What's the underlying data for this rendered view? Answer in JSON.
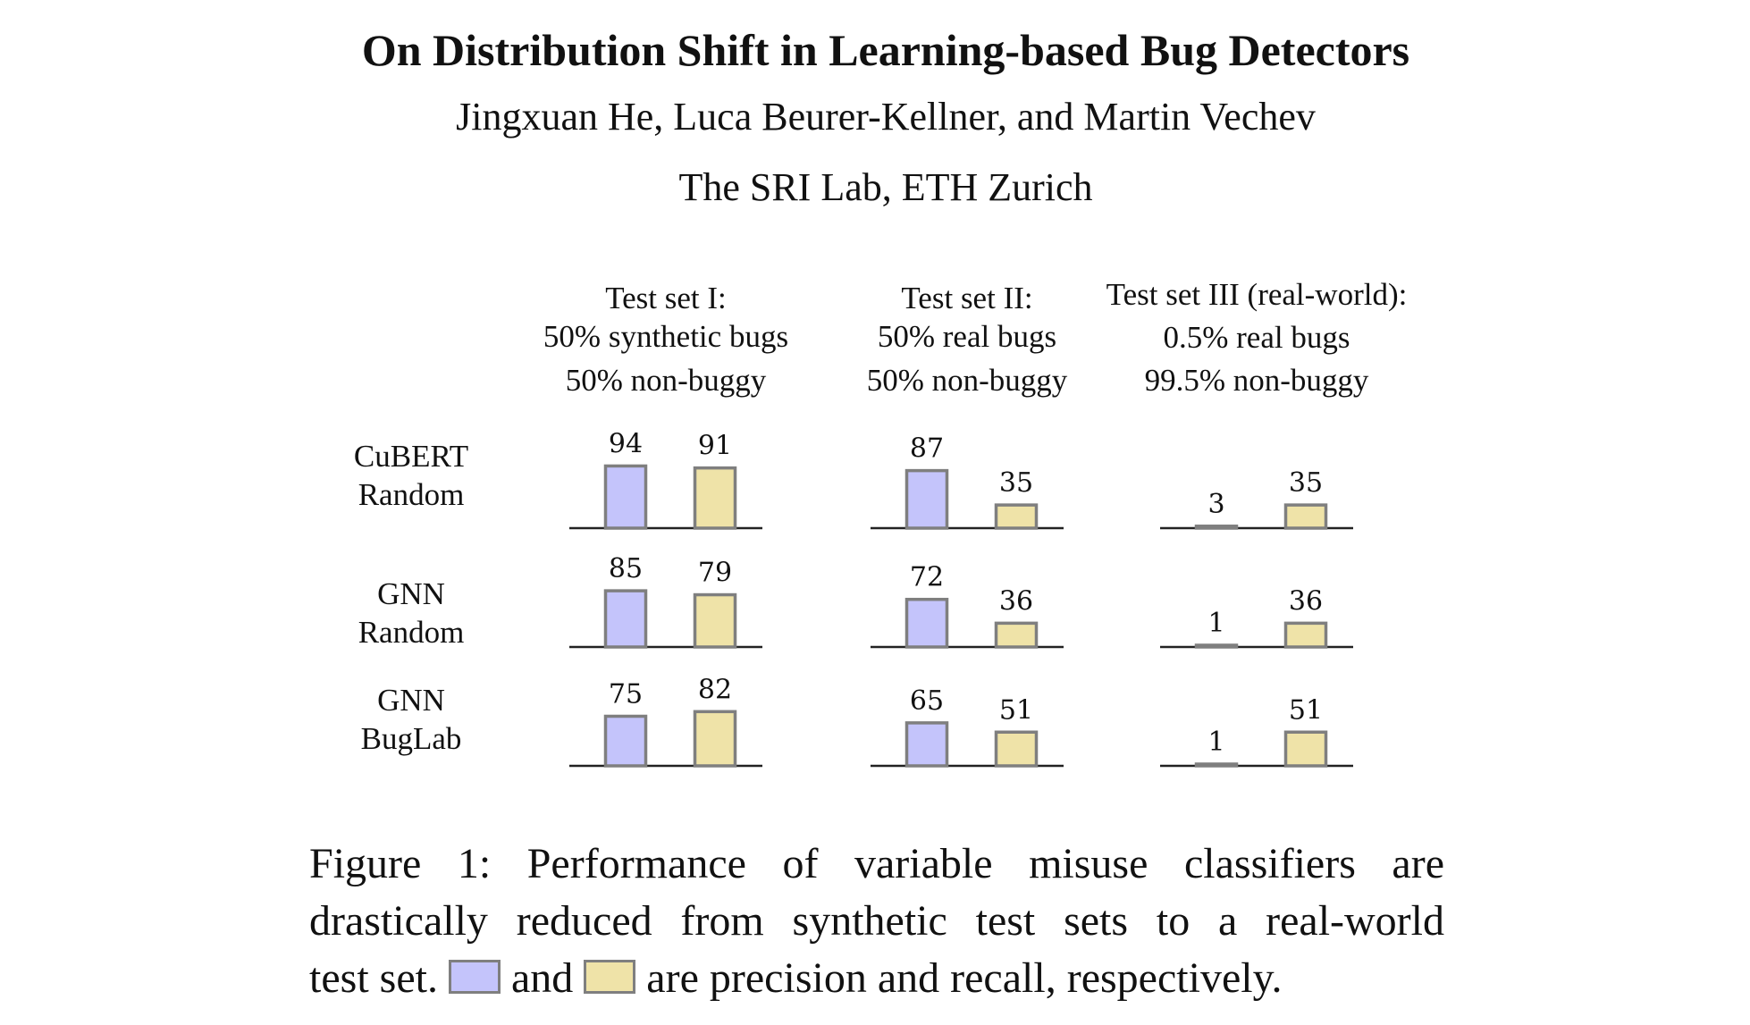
{
  "paper": {
    "title": "On Distribution Shift in Learning-based Bug Detectors",
    "authors": "Jingxuan He, Luca Beurer-Kellner, and Martin Vechev",
    "affiliation": "The SRI Lab, ETH Zurich"
  },
  "caption": {
    "line1": "Figure 1:  Performance of variable misuse classifiers are",
    "line2": "drastically reduced from synthetic test sets to a real-world",
    "line3_start": "test set.",
    "line3_and": "and",
    "line3_end": "are precision and recall, respectively."
  },
  "chart_data": {
    "type": "bar",
    "title": "",
    "colors": {
      "precision": "#c4c4fb",
      "recall": "#efe3a8",
      "border": "#7f7f7f",
      "baseline": "#222222"
    },
    "series": [
      {
        "key": "precision"
      },
      {
        "key": "recall"
      }
    ],
    "test_sets": [
      {
        "header": [
          "Test set I:",
          "50% synthetic bugs",
          "50% non-buggy"
        ]
      },
      {
        "header": [
          "Test set II:",
          "50% real bugs",
          "50% non-buggy"
        ]
      },
      {
        "header": [
          "Test set III (real-world):",
          "0.5% real bugs",
          "99.5% non-buggy"
        ]
      }
    ],
    "models": [
      {
        "label": [
          "CuBERT",
          "Random"
        ],
        "values": [
          [
            94,
            91
          ],
          [
            87,
            35
          ],
          [
            3,
            35
          ]
        ]
      },
      {
        "label": [
          "GNN",
          "Random"
        ],
        "values": [
          [
            85,
            79
          ],
          [
            72,
            36
          ],
          [
            1,
            36
          ]
        ]
      },
      {
        "label": [
          "GNN",
          "BugLab"
        ],
        "values": [
          [
            75,
            82
          ],
          [
            65,
            51
          ],
          [
            1,
            51
          ]
        ]
      }
    ],
    "ylim": [
      0,
      100
    ]
  }
}
